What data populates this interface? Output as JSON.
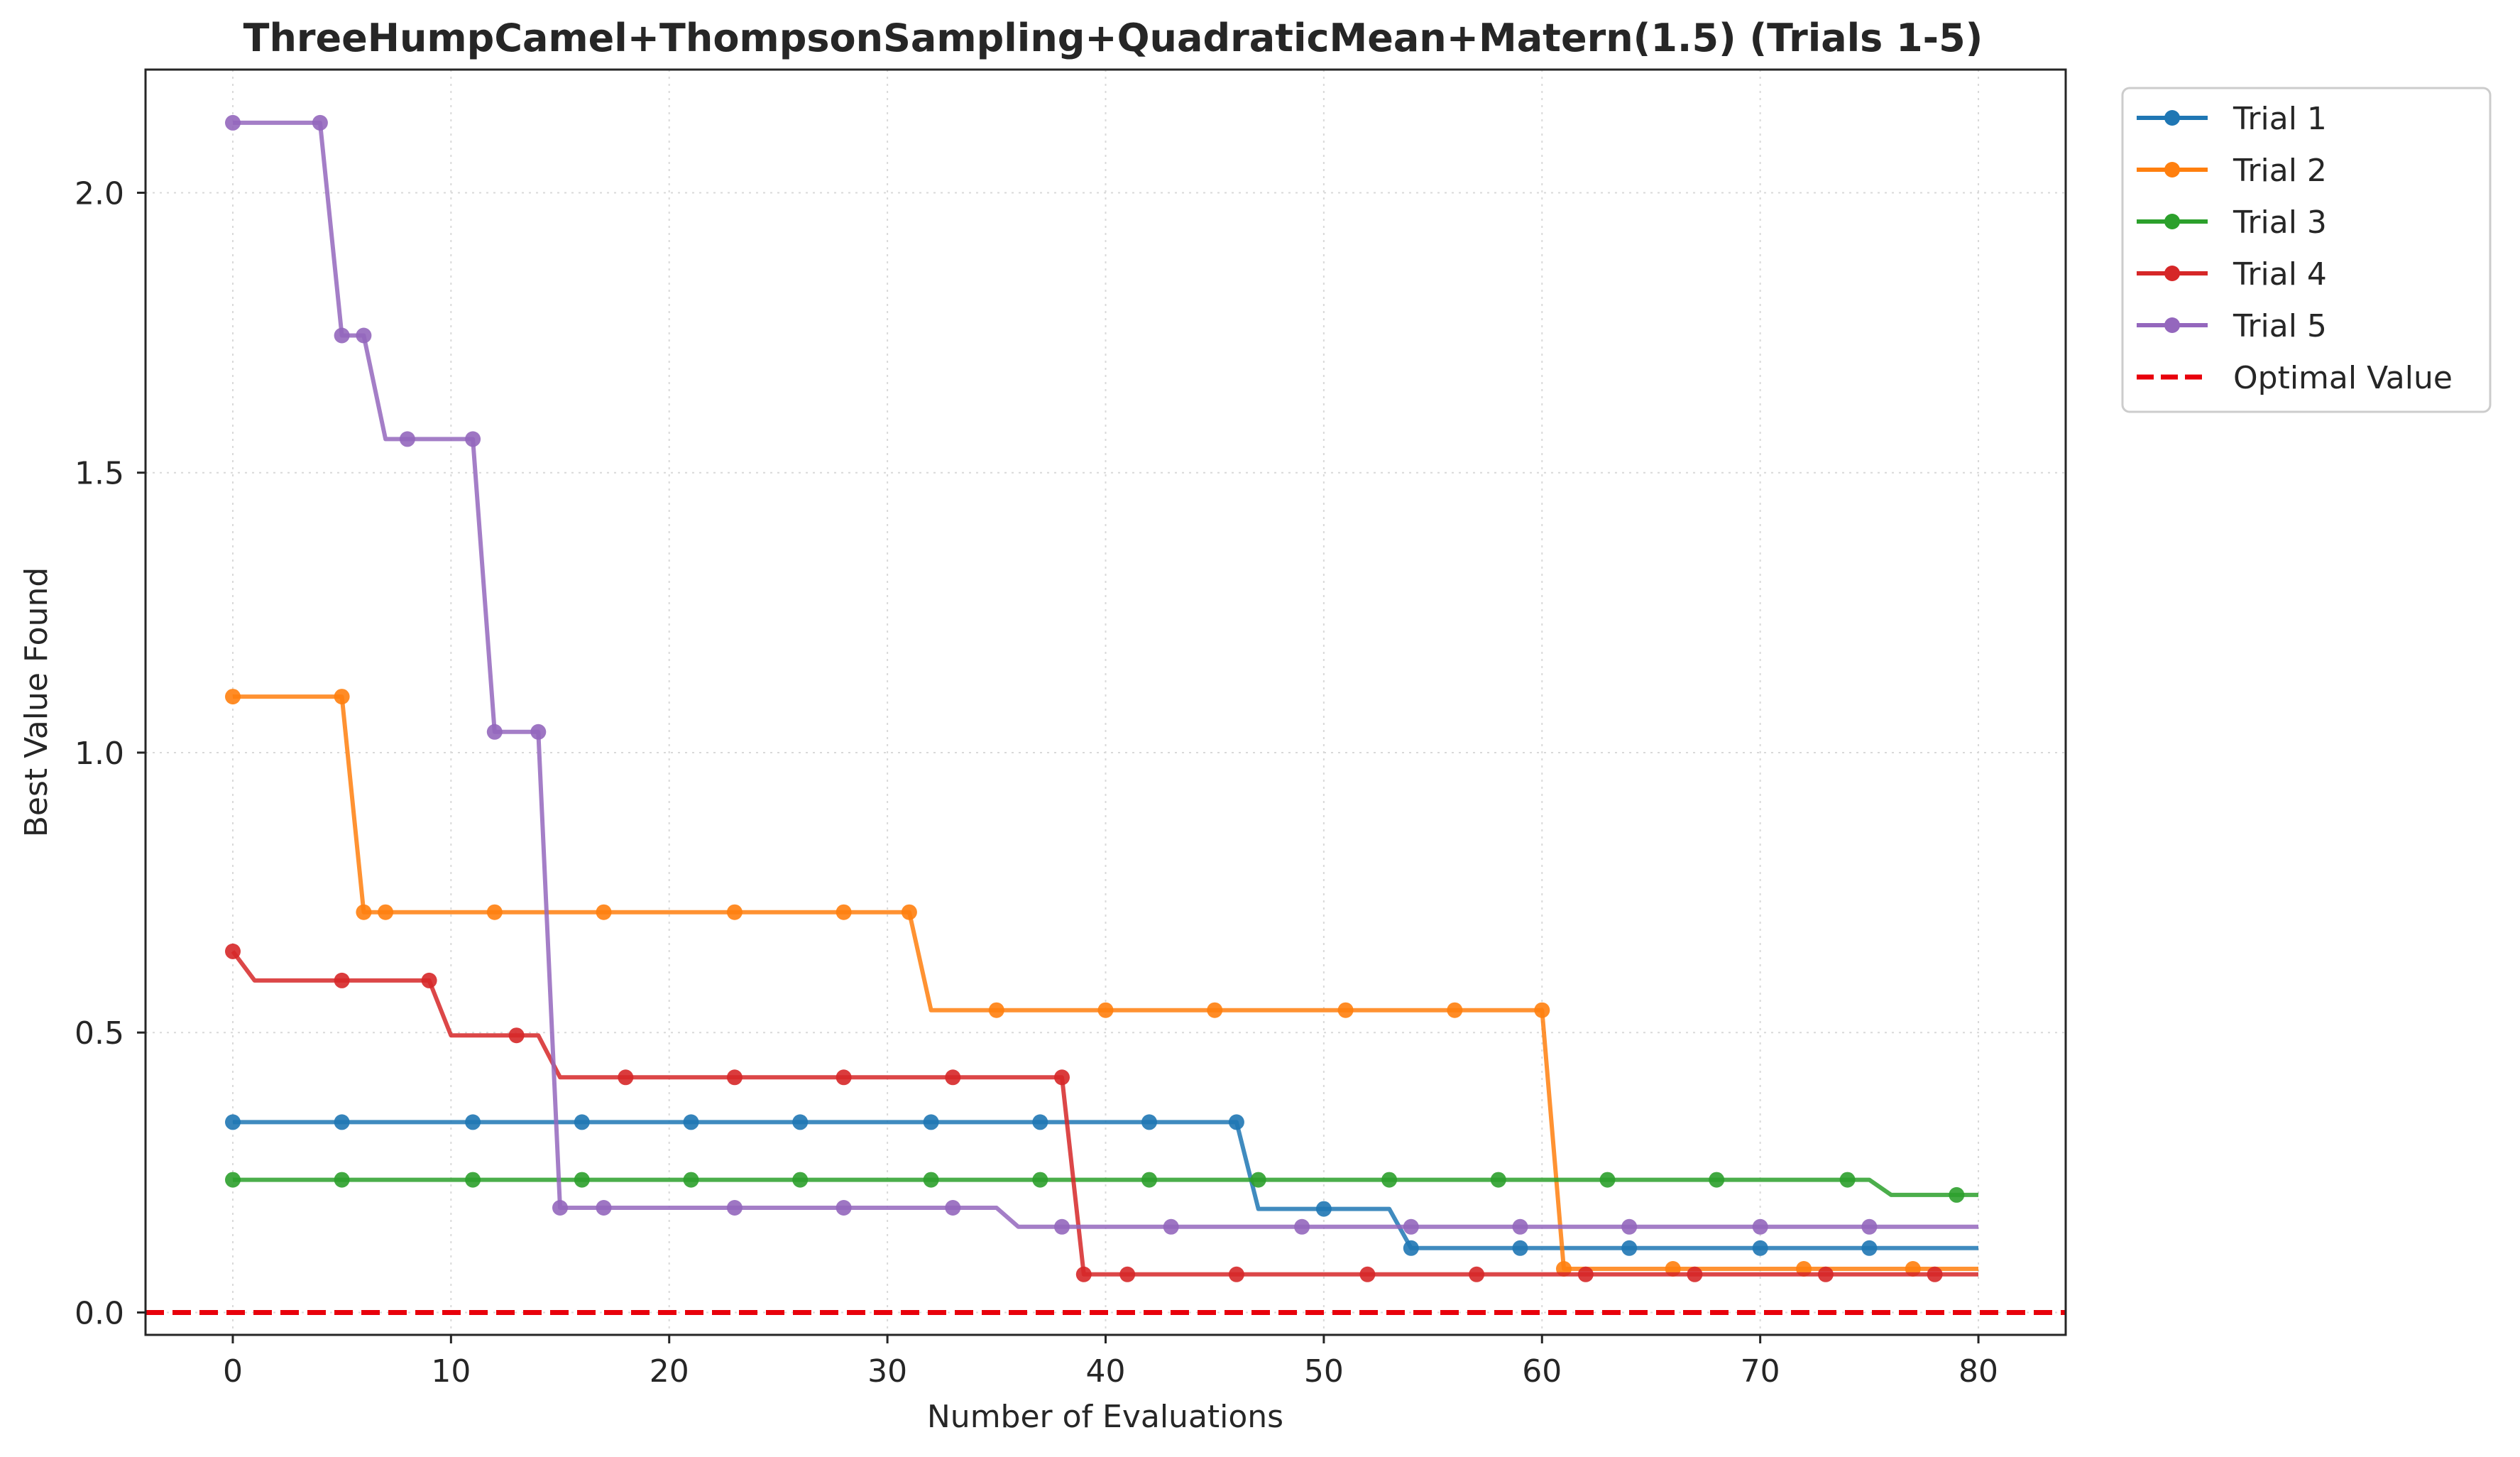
{
  "chart_data": {
    "type": "line",
    "title": "ThreeHumpCamel+ThompsonSampling+QuadraticMean+Matern(1.5) (Trials 1-5)",
    "xlabel": "Number of Evaluations",
    "ylabel": "Best Value Found",
    "xlim": [
      -4,
      84
    ],
    "ylim": [
      -0.04,
      2.22
    ],
    "xticks": [
      0,
      10,
      20,
      30,
      40,
      50,
      60,
      70,
      80
    ],
    "yticks": [
      0.0,
      0.5,
      1.0,
      1.5,
      2.0
    ],
    "xtick_labels": [
      "0",
      "10",
      "20",
      "30",
      "40",
      "50",
      "60",
      "70",
      "80"
    ],
    "ytick_labels": [
      "0.0",
      "0.5",
      "1.0",
      "1.5",
      "2.0"
    ],
    "grid": true,
    "legend_position": "outside top-right",
    "optimal_value": 0.0,
    "optimal_label": "Optimal Value",
    "optimal_color": "#e8000b",
    "series": [
      {
        "name": "Trial 1",
        "color": "#1f77b4",
        "steps": [
          [
            0,
            0.34
          ],
          [
            46,
            0.34
          ],
          [
            47,
            0.185
          ],
          [
            53,
            0.185
          ],
          [
            54,
            0.115
          ],
          [
            80,
            0.115
          ]
        ],
        "markers": [
          0,
          5,
          11,
          16,
          21,
          26,
          32,
          37,
          42,
          46,
          50,
          54,
          59,
          64,
          70,
          75
        ]
      },
      {
        "name": "Trial 2",
        "color": "#ff7f0e",
        "steps": [
          [
            0,
            1.1
          ],
          [
            5,
            1.1
          ],
          [
            6,
            0.715
          ],
          [
            31,
            0.715
          ],
          [
            32,
            0.54
          ],
          [
            60,
            0.54
          ],
          [
            61,
            0.078
          ],
          [
            80,
            0.078
          ]
        ],
        "markers": [
          0,
          5,
          6,
          7,
          12,
          17,
          23,
          28,
          31,
          35,
          40,
          45,
          51,
          56,
          60,
          61,
          66,
          72,
          77
        ]
      },
      {
        "name": "Trial 3",
        "color": "#2ca02c",
        "steps": [
          [
            0,
            0.237
          ],
          [
            75,
            0.237
          ],
          [
            76,
            0.21
          ],
          [
            80,
            0.21
          ]
        ],
        "markers": [
          0,
          5,
          11,
          16,
          21,
          26,
          32,
          37,
          42,
          47,
          53,
          58,
          63,
          68,
          74,
          79
        ]
      },
      {
        "name": "Trial 4",
        "color": "#d62728",
        "steps": [
          [
            0,
            0.645
          ],
          [
            1,
            0.593
          ],
          [
            9,
            0.593
          ],
          [
            10,
            0.495
          ],
          [
            14,
            0.495
          ],
          [
            15,
            0.42
          ],
          [
            38,
            0.42
          ],
          [
            39,
            0.068
          ],
          [
            80,
            0.068
          ]
        ],
        "markers": [
          0,
          5,
          9,
          13,
          18,
          23,
          28,
          33,
          38,
          39,
          41,
          46,
          52,
          57,
          62,
          67,
          73,
          78
        ]
      },
      {
        "name": "Trial 5",
        "color": "#9467bd",
        "steps": [
          [
            0,
            2.125
          ],
          [
            4,
            2.125
          ],
          [
            5,
            1.745
          ],
          [
            6,
            1.745
          ],
          [
            7,
            1.56
          ],
          [
            11,
            1.56
          ],
          [
            12,
            1.037
          ],
          [
            14,
            1.037
          ],
          [
            15,
            0.187
          ],
          [
            35,
            0.187
          ],
          [
            36,
            0.153
          ],
          [
            80,
            0.153
          ]
        ],
        "markers": [
          0,
          4,
          5,
          6,
          8,
          11,
          12,
          14,
          15,
          17,
          23,
          28,
          33,
          38,
          43,
          49,
          54,
          59,
          64,
          70,
          75
        ]
      }
    ]
  }
}
